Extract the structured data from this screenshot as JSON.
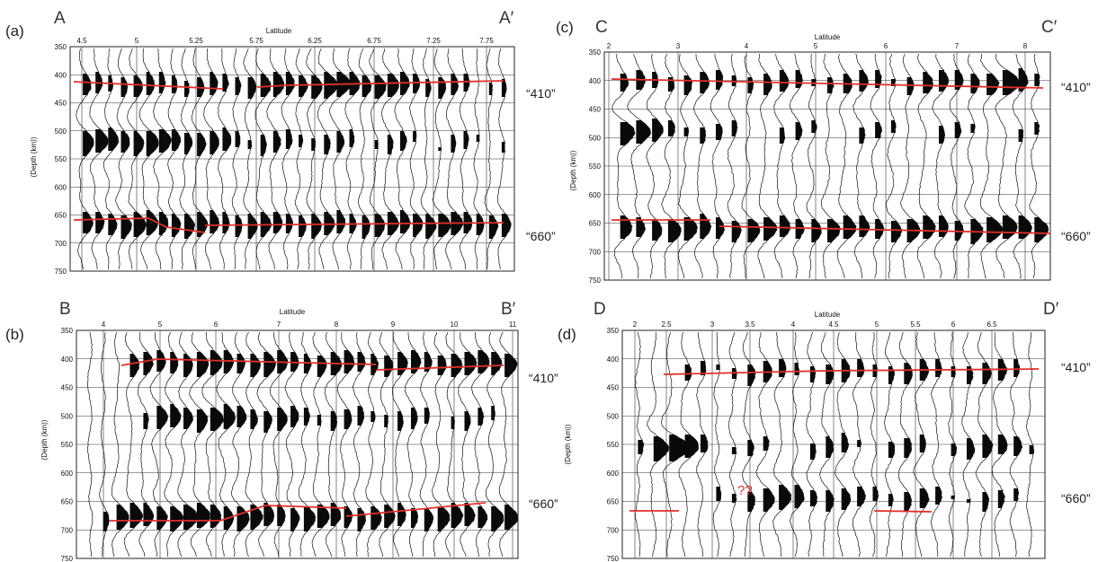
{
  "figure": {
    "line_color": "#e0302a",
    "panels": [
      {
        "id": "a",
        "label": "(a)",
        "start": "A",
        "end": "A′",
        "xlabel": "Latitude",
        "ylabel": "(Depth (km))",
        "lat_ticks": [
          "4.5",
          "5",
          "5.25",
          "5.75",
          "6.25",
          "6.75",
          "7.25",
          "7.75"
        ],
        "depth_ticks": [
          "350",
          "400",
          "450",
          "500",
          "550",
          "600",
          "650",
          "700",
          "750"
        ],
        "disc_410": "“410”",
        "disc_660": "“660”",
        "note": ""
      },
      {
        "id": "b",
        "label": "(b)",
        "start": "B",
        "end": "B′",
        "xlabel": "Latitude",
        "ylabel": "(Depth (km))",
        "lat_ticks": [
          "4",
          "5",
          "6",
          "7",
          "8",
          "9",
          "10",
          "11"
        ],
        "depth_ticks": [
          "350",
          "400",
          "450",
          "500",
          "550",
          "600",
          "650",
          "700",
          "750"
        ],
        "disc_410": "“410”",
        "disc_660": "“660”",
        "note": ""
      },
      {
        "id": "c",
        "label": "(c)",
        "start": "C",
        "end": "C′",
        "xlabel": "Latitude",
        "ylabel": "(Depth (km))",
        "lat_ticks": [
          "2",
          "3",
          "4",
          "5",
          "6",
          "7",
          "8"
        ],
        "depth_ticks": [
          "350",
          "400",
          "450",
          "500",
          "550",
          "600",
          "650",
          "700",
          "750"
        ],
        "disc_410": "“410”",
        "disc_660": "“660”",
        "note": ""
      },
      {
        "id": "d",
        "label": "(d)",
        "start": "D",
        "end": "D′",
        "xlabel": "Latitude",
        "ylabel": "(Depth (km))",
        "lat_ticks": [
          "2",
          "2.5",
          "3",
          "3.5",
          "4",
          "4.5",
          "5",
          "5.5",
          "6",
          "6.5"
        ],
        "depth_ticks": [
          "350",
          "400",
          "450",
          "500",
          "550",
          "600",
          "650",
          "700",
          "750"
        ],
        "disc_410": "“410”",
        "disc_660": "“660”",
        "note": "??"
      }
    ]
  }
}
